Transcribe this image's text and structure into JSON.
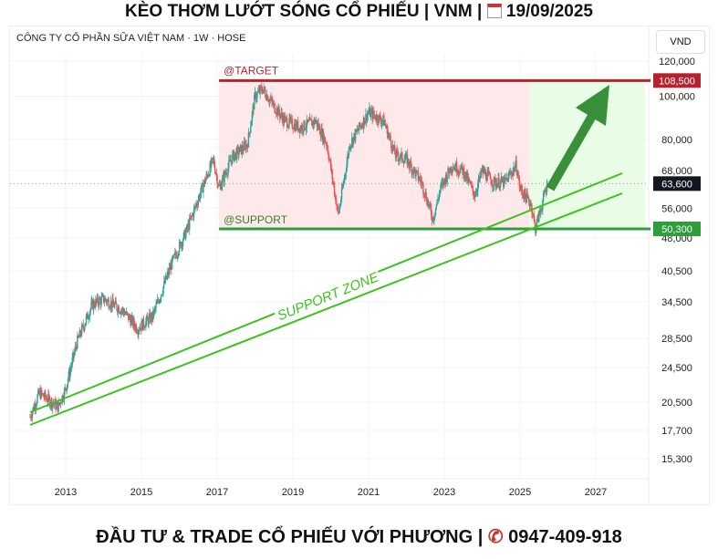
{
  "header": {
    "title_prefix": "KÈO THƠM LƯỚT SÓNG CỔ PHIẾU | VNM | ",
    "date": "19/09/2025"
  },
  "subtitle": "CÔNG TY CỔ PHẦN SỮA VIỆT NAM · 1W · HOSE",
  "currency": "VND",
  "footer": {
    "text": "ĐẦU TƯ & TRADE CỔ PHIẾU VỚI PHƯƠNG | ",
    "phone": "0947-409-918"
  },
  "chart_data": {
    "type": "candlestick",
    "scale": "log",
    "ylim": [
      14500,
      125000
    ],
    "xlim": [
      2011.9,
      2028.2
    ],
    "y_ticks": [
      {
        "v": 120000,
        "l": "120,000"
      },
      {
        "v": 100000,
        "l": "100,000"
      },
      {
        "v": 80000,
        "l": "80,000"
      },
      {
        "v": 68000,
        "l": "68,000"
      },
      {
        "v": 56000,
        "l": "56,000"
      },
      {
        "v": 48000,
        "l": "48,000"
      },
      {
        "v": 40500,
        "l": "40,500"
      },
      {
        "v": 34500,
        "l": "34,500"
      },
      {
        "v": 28500,
        "l": "28,500"
      },
      {
        "v": 24500,
        "l": "24,500"
      },
      {
        "v": 20500,
        "l": "20,500"
      },
      {
        "v": 17700,
        "l": "17,700"
      },
      {
        "v": 15300,
        "l": "15,300"
      }
    ],
    "x_ticks": [
      2013,
      2015,
      2017,
      2019,
      2021,
      2023,
      2025,
      2027
    ],
    "price_path": [
      [
        2012.06,
        19000
      ],
      [
        2012.3,
        21500
      ],
      [
        2012.8,
        20000
      ],
      [
        2013.0,
        22000
      ],
      [
        2013.3,
        28000
      ],
      [
        2013.7,
        34000
      ],
      [
        2014.0,
        35000
      ],
      [
        2014.5,
        33000
      ],
      [
        2014.9,
        30000
      ],
      [
        2015.3,
        32000
      ],
      [
        2015.8,
        42000
      ],
      [
        2016.2,
        50000
      ],
      [
        2016.6,
        62000
      ],
      [
        2016.9,
        72000
      ],
      [
        2017.05,
        62000
      ],
      [
        2017.4,
        73000
      ],
      [
        2017.8,
        78000
      ],
      [
        2018.0,
        100000
      ],
      [
        2018.2,
        104000
      ],
      [
        2018.5,
        95000
      ],
      [
        2018.8,
        88000
      ],
      [
        2019.2,
        85000
      ],
      [
        2019.6,
        88000
      ],
      [
        2019.9,
        78000
      ],
      [
        2020.2,
        54000
      ],
      [
        2020.5,
        78000
      ],
      [
        2021.0,
        92000
      ],
      [
        2021.4,
        88000
      ],
      [
        2021.7,
        74000
      ],
      [
        2022.0,
        72000
      ],
      [
        2022.4,
        64000
      ],
      [
        2022.7,
        53000
      ],
      [
        2022.9,
        62000
      ],
      [
        2023.2,
        70000
      ],
      [
        2023.5,
        68000
      ],
      [
        2023.8,
        60000
      ],
      [
        2024.0,
        68000
      ],
      [
        2024.3,
        64000
      ],
      [
        2024.6,
        64000
      ],
      [
        2024.9,
        70000
      ],
      [
        2025.0,
        62000
      ],
      [
        2025.3,
        57000
      ],
      [
        2025.4,
        50300
      ],
      [
        2025.6,
        58000
      ],
      [
        2025.72,
        63600
      ]
    ],
    "last_price": {
      "v": 63600,
      "l": "63,600"
    },
    "target": {
      "v": 108500,
      "l": "108,500",
      "label": "@TARGET",
      "color": "#b5232f"
    },
    "support": {
      "v": 50300,
      "l": "50,300",
      "label": "@SUPPORT",
      "color": "#2e9e3a"
    },
    "zone_label": "SUPPORT ZONE",
    "up_color": "#26a69a",
    "down_color": "#ef5350"
  }
}
